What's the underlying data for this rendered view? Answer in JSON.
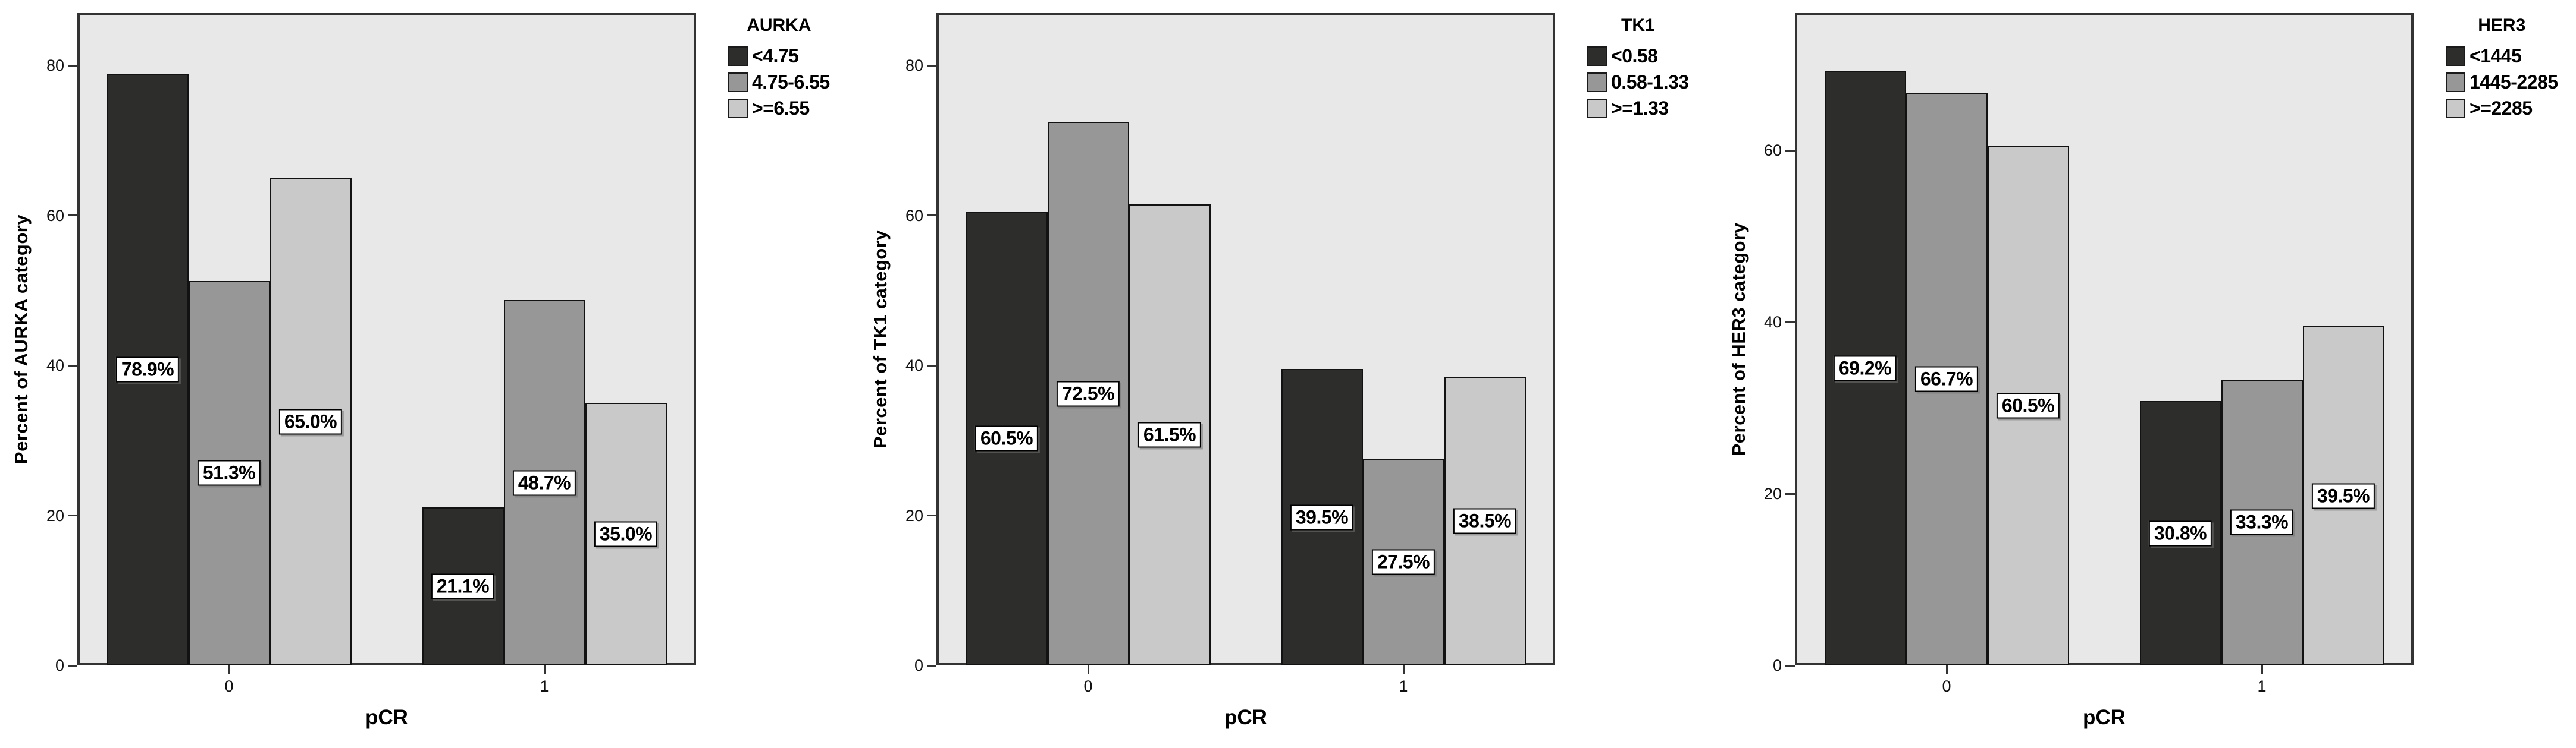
{
  "figure": {
    "background": "#ffffff",
    "plot_background": "#e8e8e8",
    "frame_color": "#333333",
    "text_color": "#000000"
  },
  "chart_data": [
    {
      "type": "bar",
      "legend_title": "AURKA",
      "xlabel": "pCR",
      "ylabel": "Percent of AURKA category",
      "categories": [
        "0",
        "1"
      ],
      "yticks": [
        0,
        20,
        40,
        60,
        80
      ],
      "ytick_labels": [
        "0",
        "20",
        "40",
        "60",
        "80"
      ],
      "ylim": [
        0,
        87
      ],
      "grid": false,
      "legend_position": "outside-top-right",
      "series": [
        {
          "name": "<4.75",
          "color": "#2d2d2b",
          "values": [
            78.9,
            21.1
          ],
          "labels": [
            "78.9%",
            "21.1%"
          ]
        },
        {
          "name": "4.75-6.55",
          "color": "#979797",
          "values": [
            51.3,
            48.7
          ],
          "labels": [
            "51.3%",
            "48.7%"
          ]
        },
        {
          "name": ">=6.55",
          "color": "#c9c9c9",
          "values": [
            65.0,
            35.0
          ],
          "labels": [
            "65.0%",
            "35.0%"
          ]
        }
      ]
    },
    {
      "type": "bar",
      "legend_title": "TK1",
      "xlabel": "pCR",
      "ylabel": "Percent of TK1 category",
      "categories": [
        "0",
        "1"
      ],
      "yticks": [
        0,
        20,
        40,
        60,
        80
      ],
      "ytick_labels": [
        "0",
        "20",
        "40",
        "60",
        "80"
      ],
      "ylim": [
        0,
        87
      ],
      "grid": false,
      "legend_position": "outside-top-right",
      "series": [
        {
          "name": "<0.58",
          "color": "#2d2d2b",
          "values": [
            60.5,
            39.5
          ],
          "labels": [
            "60.5%",
            "39.5%"
          ]
        },
        {
          "name": "0.58-1.33",
          "color": "#979797",
          "values": [
            72.5,
            27.5
          ],
          "labels": [
            "72.5%",
            "27.5%"
          ]
        },
        {
          "name": ">=1.33",
          "color": "#c9c9c9",
          "values": [
            61.5,
            38.5
          ],
          "labels": [
            "61.5%",
            "38.5%"
          ]
        }
      ]
    },
    {
      "type": "bar",
      "legend_title": "HER3",
      "xlabel": "pCR",
      "ylabel": "Percent of HER3 category",
      "categories": [
        "0",
        "1"
      ],
      "yticks": [
        0,
        20,
        40,
        60
      ],
      "ytick_labels": [
        "0",
        "20",
        "40",
        "60"
      ],
      "ylim": [
        0,
        76
      ],
      "grid": false,
      "legend_position": "outside-top-right",
      "series": [
        {
          "name": "<1445",
          "color": "#2d2d2b",
          "values": [
            69.2,
            30.8
          ],
          "labels": [
            "69.2%",
            "30.8%"
          ]
        },
        {
          "name": "1445-2285",
          "color": "#979797",
          "values": [
            66.7,
            33.3
          ],
          "labels": [
            "66.7%",
            "33.3%"
          ]
        },
        {
          "name": ">=2285",
          "color": "#c9c9c9",
          "values": [
            60.5,
            39.5
          ],
          "labels": [
            "60.5%",
            "39.5%"
          ]
        }
      ]
    }
  ]
}
